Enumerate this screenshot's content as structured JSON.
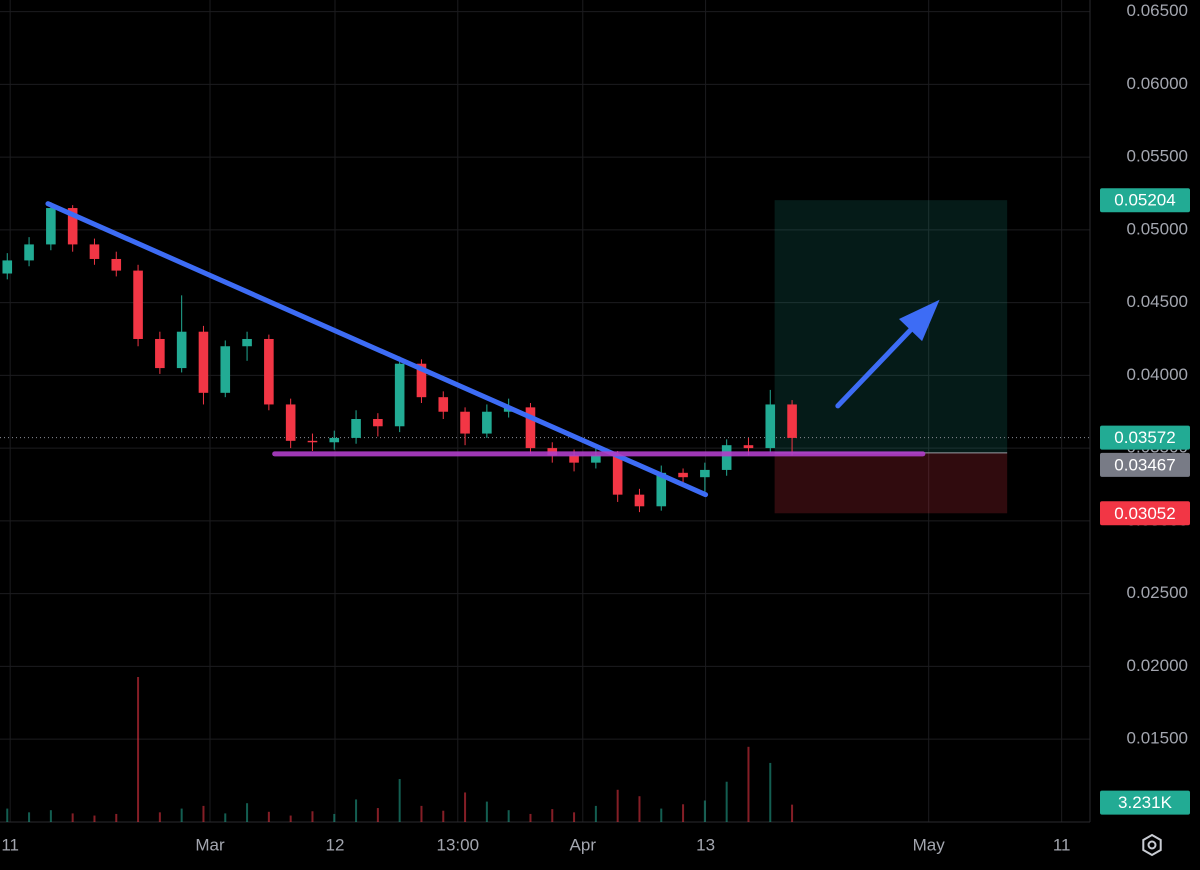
{
  "chart_data": {
    "type": "candlestick",
    "x": [
      1,
      4,
      7,
      10,
      13,
      16,
      19,
      22,
      25,
      28,
      31,
      34,
      37,
      40,
      43,
      46,
      49,
      52,
      55,
      58,
      61,
      64,
      67,
      70,
      73,
      76,
      79,
      82,
      85,
      88,
      91,
      94,
      97,
      100,
      103,
      106,
      109
    ],
    "open": [
      0.047,
      0.0479,
      0.049,
      0.0515,
      0.049,
      0.048,
      0.0472,
      0.0425,
      0.0405,
      0.043,
      0.0388,
      0.042,
      0.0425,
      0.038,
      0.0355,
      0.0354,
      0.0357,
      0.037,
      0.0365,
      0.0408,
      0.0385,
      0.0375,
      0.036,
      0.0375,
      0.0378,
      0.035,
      0.0345,
      0.034,
      0.0345,
      0.0318,
      0.031,
      0.0333,
      0.033,
      0.0335,
      0.0352,
      0.035,
      0.038
    ],
    "high": [
      0.0484,
      0.0495,
      0.0519,
      0.0517,
      0.0494,
      0.0485,
      0.0476,
      0.043,
      0.0455,
      0.0434,
      0.0424,
      0.043,
      0.0428,
      0.0384,
      0.036,
      0.0362,
      0.0376,
      0.0374,
      0.0413,
      0.0411,
      0.0389,
      0.0378,
      0.038,
      0.0384,
      0.0381,
      0.0354,
      0.0349,
      0.035,
      0.0348,
      0.0322,
      0.0338,
      0.0336,
      0.034,
      0.0356,
      0.0357,
      0.039,
      0.0383
    ],
    "low": [
      0.0466,
      0.0475,
      0.0486,
      0.0485,
      0.0476,
      0.0468,
      0.042,
      0.0401,
      0.0402,
      0.038,
      0.0385,
      0.041,
      0.0376,
      0.035,
      0.0348,
      0.0349,
      0.0353,
      0.0358,
      0.0361,
      0.0381,
      0.037,
      0.0352,
      0.0357,
      0.0371,
      0.0346,
      0.034,
      0.0334,
      0.0336,
      0.0313,
      0.0306,
      0.0307,
      0.0325,
      0.032,
      0.0331,
      0.0345,
      0.0347,
      0.0345
    ],
    "close": [
      0.0479,
      0.049,
      0.0515,
      0.049,
      0.048,
      0.0472,
      0.0425,
      0.0405,
      0.043,
      0.0388,
      0.042,
      0.0425,
      0.038,
      0.0355,
      0.0354,
      0.0357,
      0.037,
      0.0365,
      0.0408,
      0.0385,
      0.0375,
      0.036,
      0.0375,
      0.0378,
      0.035,
      0.0345,
      0.034,
      0.0345,
      0.0318,
      0.031,
      0.0333,
      0.033,
      0.0335,
      0.0352,
      0.035,
      0.038,
      0.0357
    ],
    "volume": [
      2500,
      1800,
      2200,
      1600,
      1200,
      1500,
      27000,
      1800,
      2500,
      3000,
      1600,
      3500,
      1900,
      1200,
      2000,
      1500,
      4200,
      2600,
      8000,
      3000,
      2100,
      5500,
      3800,
      2200,
      1500,
      2400,
      1800,
      3000,
      6000,
      4800,
      2500,
      3300,
      4000,
      7500,
      14000,
      11000,
      3231
    ],
    "up_color": "#22ab94",
    "down_color": "#f23645",
    "xlim": [
      0,
      150
    ],
    "xticks": [
      {
        "value": 1.4,
        "label": "11"
      },
      {
        "value": 28.9,
        "label": "Mar"
      },
      {
        "value": 46.1,
        "label": "12"
      },
      {
        "value": 63,
        "label": "13:00"
      },
      {
        "value": 80.2,
        "label": "Apr"
      },
      {
        "value": 97.1,
        "label": "13"
      },
      {
        "value": 127.8,
        "label": "May"
      },
      {
        "value": 146.1,
        "label": "11"
      }
    ],
    "ylim": [
      0.0093,
      0.0658
    ],
    "yticks": [
      {
        "value": 0.065,
        "label": "0.06500"
      },
      {
        "value": 0.06,
        "label": "0.06000"
      },
      {
        "value": 0.055,
        "label": "0.05500"
      },
      {
        "value": 0.05,
        "label": "0.05000"
      },
      {
        "value": 0.045,
        "label": "0.04500"
      },
      {
        "value": 0.04,
        "label": "0.04000"
      },
      {
        "value": 0.035,
        "label": "0.03500"
      },
      {
        "value": 0.03,
        "label": "0.03000"
      },
      {
        "value": 0.025,
        "label": "0.02500"
      },
      {
        "value": 0.02,
        "label": "0.02000"
      },
      {
        "value": 0.015,
        "label": "0.01500"
      }
    ],
    "grid": true,
    "last_price": {
      "value": 0.03572,
      "label": "0.03572"
    },
    "volume_label": {
      "value": 3231,
      "label": "3.231K"
    },
    "trendline": {
      "x": [
        6.6,
        97.1
      ],
      "y": [
        0.0518,
        0.0318
      ],
      "color": "#3d6cf5"
    },
    "support": {
      "x": [
        37.8,
        127
      ],
      "y": 0.0346,
      "color": "#b03fc9"
    },
    "position": {
      "x": [
        106.6,
        138.6
      ],
      "target": {
        "value": 0.05204,
        "label": "0.05204"
      },
      "entry": {
        "value": 0.03467,
        "label": "0.03467"
      },
      "stop": {
        "value": 0.03052,
        "label": "0.03052"
      }
    },
    "arrow": {
      "x": [
        115.3,
        129.3
      ],
      "y": [
        0.0379,
        0.0452
      ],
      "color": "#3d6cf5"
    }
  }
}
